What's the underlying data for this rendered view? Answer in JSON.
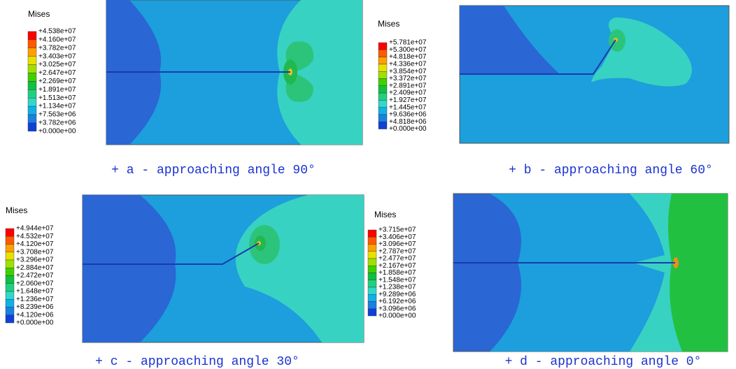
{
  "panels": [
    {
      "legend_title": "Mises",
      "legend_labels": [
        "+4.538e+07",
        "+4.160e+07",
        "+3.782e+07",
        "+3.403e+07",
        "+3.025e+07",
        "+2.647e+07",
        "+2.269e+07",
        "+1.891e+07",
        "+1.513e+07",
        "+1.134e+07",
        "+7.563e+06",
        "+3.782e+06",
        "+0.000e+00"
      ],
      "caption": "+ a - approaching angle 90°"
    },
    {
      "legend_title": "Mises",
      "legend_labels": [
        "+5.781e+07",
        "+5.300e+07",
        "+4.818e+07",
        "+4.336e+07",
        "+3.854e+07",
        "+3.372e+07",
        "+2.891e+07",
        "+2.409e+07",
        "+1.927e+07",
        "+1.445e+07",
        "+9.636e+06",
        "+4.818e+06",
        "+0.000e+00"
      ],
      "caption": "+ b - approaching angle 60°"
    },
    {
      "legend_title": "Mises",
      "legend_labels": [
        "+4.944e+07",
        "+4.532e+07",
        "+4.120e+07",
        "+3.708e+07",
        "+3.296e+07",
        "+2.884e+07",
        "+2.472e+07",
        "+2.060e+07",
        "+1.648e+07",
        "+1.236e+07",
        "+8.239e+06",
        "+4.120e+06",
        "+0.000e+00"
      ],
      "caption": "+ c - approaching angle 30°"
    },
    {
      "legend_title": "Mises",
      "legend_labels": [
        "+3.715e+07",
        "+3.406e+07",
        "+3.096e+07",
        "+2.787e+07",
        "+2.477e+07",
        "+2.167e+07",
        "+1.858e+07",
        "+1.548e+07",
        "+1.238e+07",
        "+9.289e+06",
        "+6.192e+06",
        "+3.096e+06",
        "+0.000e+00"
      ],
      "caption": "+ d - approaching angle 0°"
    }
  ]
}
